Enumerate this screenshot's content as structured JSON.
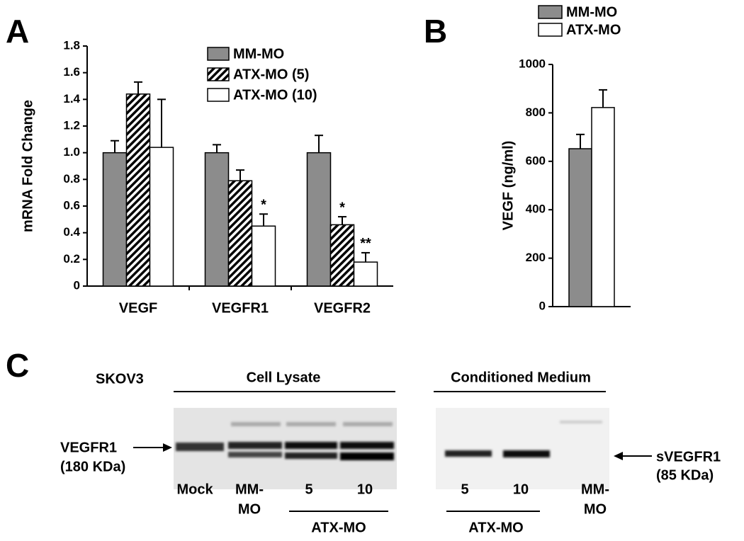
{
  "chart_data": [
    {
      "type": "bar",
      "panel": "A",
      "y_label": "mRNA Fold Change",
      "categories": [
        "VEGF",
        "VEGFR1",
        "VEGFR2"
      ],
      "series": [
        {
          "name": "MM-MO",
          "color": "#8c8c8c",
          "values": [
            1.0,
            1.0,
            1.0
          ],
          "errors": [
            0.09,
            0.06,
            0.13
          ],
          "significance": [
            null,
            null,
            null
          ]
        },
        {
          "name": "ATX-MO (5)",
          "color": "#000000",
          "pattern": "hatch",
          "values": [
            1.44,
            0.79,
            0.46
          ],
          "errors": [
            0.09,
            0.08,
            0.06
          ],
          "significance": [
            null,
            null,
            "*"
          ]
        },
        {
          "name": "ATX-MO (10)",
          "color": "#ffffff",
          "values": [
            1.04,
            0.45,
            0.18
          ],
          "errors": [
            0.36,
            0.09,
            0.07
          ],
          "significance": [
            null,
            "*",
            "**"
          ]
        }
      ],
      "ylim": [
        0,
        1.8
      ],
      "yticks": [
        0,
        0.2,
        0.4,
        0.6,
        0.8,
        {
          "value": 1,
          "label": "1.0"
        },
        1.2,
        1.4,
        1.6,
        1.8
      ]
    },
    {
      "type": "bar",
      "panel": "B",
      "y_label": "VEGF (ng/ml)",
      "categories": [
        null
      ],
      "series": [
        {
          "name": "MM-MO",
          "color": "#8c8c8c",
          "values": [
            652
          ],
          "errors": [
            59
          ]
        },
        {
          "name": "ATX-MO",
          "color": "#ffffff",
          "values": [
            822
          ],
          "errors": [
            73
          ]
        }
      ],
      "ylim": [
        0,
        1000
      ],
      "yticks": [
        0,
        200,
        400,
        600,
        800,
        1000
      ]
    }
  ],
  "blot": {
    "panel": "C",
    "cell_line": "SKOV3",
    "lysate": "Cell Lysate",
    "medium": "Conditioned Medium",
    "left_marker": [
      "VEGFR1",
      "(180 KDa)"
    ],
    "right_marker": [
      "sVEGFR1",
      "(85 KDa)"
    ],
    "lysate_lanes": [
      "Mock",
      [
        "MM-",
        "MO"
      ],
      "5",
      "10"
    ],
    "lysate_group": "ATX-MO",
    "medium_lanes": [
      "5",
      "10",
      [
        "MM-",
        "MO"
      ]
    ],
    "medium_group": "ATX-MO"
  }
}
